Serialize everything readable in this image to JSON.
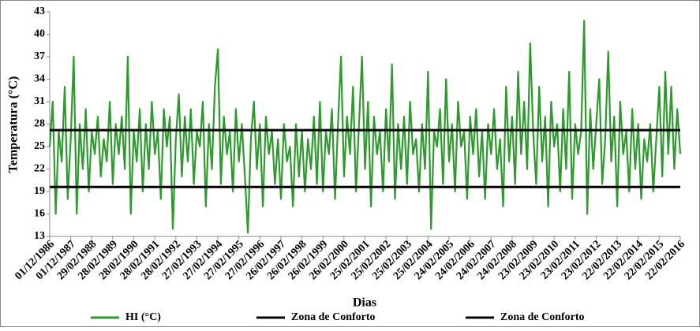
{
  "chart_data": {
    "type": "line",
    "y_label": "Temperatura (°C)",
    "x_label": "Dias",
    "ylim": [
      13,
      43
    ],
    "yticks": [
      13,
      16,
      19,
      22,
      25,
      28,
      31,
      34,
      37,
      40,
      43
    ],
    "categories": [
      "01/12/1986",
      null,
      null,
      null,
      null,
      null,
      null,
      "01/12/1987",
      null,
      null,
      null,
      null,
      null,
      null,
      "29/02/1988",
      null,
      null,
      null,
      null,
      null,
      null,
      "28/02/1989",
      null,
      null,
      null,
      null,
      null,
      null,
      "28/02/1990",
      null,
      null,
      null,
      null,
      null,
      null,
      "28/02/1991",
      null,
      null,
      null,
      null,
      null,
      null,
      "28/02/1992",
      null,
      null,
      null,
      null,
      null,
      null,
      "27/02/1993",
      null,
      null,
      null,
      null,
      null,
      null,
      "27/02/1994",
      null,
      null,
      null,
      null,
      null,
      null,
      "27/02/1995",
      null,
      null,
      null,
      null,
      null,
      null,
      "27/02/1996",
      null,
      null,
      null,
      null,
      null,
      null,
      "26/02/1997",
      null,
      null,
      null,
      null,
      null,
      null,
      "26/02/1998",
      null,
      null,
      null,
      null,
      null,
      null,
      "26/02/1999",
      null,
      null,
      null,
      null,
      null,
      null,
      "26/02/2000",
      null,
      null,
      null,
      null,
      null,
      null,
      "25/02/2001",
      null,
      null,
      null,
      null,
      null,
      null,
      "25/02/2002",
      null,
      null,
      null,
      null,
      null,
      null,
      "25/02/2003",
      null,
      null,
      null,
      null,
      null,
      null,
      "25/02/2004",
      null,
      null,
      null,
      null,
      null,
      null,
      "24/02/2005",
      null,
      null,
      null,
      null,
      null,
      null,
      "24/02/2006",
      null,
      null,
      null,
      null,
      null,
      null,
      "24/02/2007",
      null,
      null,
      null,
      null,
      null,
      null,
      "24/02/2008",
      null,
      null,
      null,
      null,
      null,
      null,
      "23/02/2009",
      null,
      null,
      null,
      null,
      null,
      null,
      "23/02/2010",
      null,
      null,
      null,
      null,
      null,
      null,
      "23/02/2011",
      null,
      null,
      null,
      null,
      null,
      null,
      "23/02/2012",
      null,
      null,
      null,
      null,
      null,
      null,
      "22/02/2013",
      null,
      null,
      null,
      null,
      null,
      null,
      "22/02/2014",
      null,
      null,
      null,
      null,
      null,
      null,
      "22/02/2015",
      null,
      null,
      null,
      null,
      null,
      null,
      "22/02/2016"
    ],
    "series": [
      {
        "name": "HI (°C)",
        "color": "#2e9a2e",
        "values": [
          25,
          31,
          16,
          27,
          23,
          33,
          18,
          26,
          37,
          16,
          28,
          22,
          30,
          19,
          27,
          24,
          29,
          21,
          26,
          23,
          31,
          20,
          28,
          24,
          29,
          22,
          37,
          16,
          27,
          23,
          30,
          19,
          28,
          22,
          31,
          24,
          27,
          18,
          30,
          25,
          29,
          14,
          26,
          32,
          21,
          29,
          23,
          30,
          20,
          27,
          25,
          31,
          17,
          28,
          22,
          33,
          38,
          20,
          29,
          24,
          27,
          19,
          30,
          23,
          28,
          21,
          13.5,
          26,
          31,
          22,
          28,
          17,
          29,
          24,
          27,
          20,
          26,
          18,
          28,
          23,
          25,
          17,
          28,
          21,
          27,
          19,
          26,
          22,
          29,
          20,
          31,
          19,
          27,
          24,
          30,
          18,
          28,
          37,
          21,
          29,
          24,
          33,
          19,
          28,
          37,
          22,
          31,
          17,
          29,
          24,
          27,
          19,
          30,
          23,
          36,
          18,
          28,
          22,
          29,
          20,
          31,
          24,
          26,
          19,
          28,
          22,
          35,
          14,
          27,
          25,
          30,
          20,
          34,
          23,
          28,
          19,
          31,
          25,
          27,
          18,
          29,
          24,
          30,
          21,
          27,
          18,
          28,
          24,
          30,
          22,
          26,
          17,
          33,
          23,
          29,
          20,
          35,
          24,
          31,
          22,
          38.8,
          27,
          20,
          33,
          23,
          29,
          17,
          31,
          25,
          28,
          19,
          30,
          22,
          35,
          18,
          28,
          24,
          27,
          41.8,
          16,
          30,
          22,
          28,
          34,
          20,
          26,
          37.7,
          23,
          29,
          17,
          31,
          24,
          27,
          19,
          30,
          22,
          28,
          18,
          26,
          23,
          28,
          19,
          26,
          33,
          21,
          35,
          24,
          33,
          22,
          30,
          24
        ]
      }
    ],
    "hlines": [
      {
        "name": "Zona de Conforto",
        "color": "#000000",
        "value": 27.2
      },
      {
        "name": "Zona de Conforto",
        "color": "#000000",
        "value": 19.6
      }
    ]
  }
}
